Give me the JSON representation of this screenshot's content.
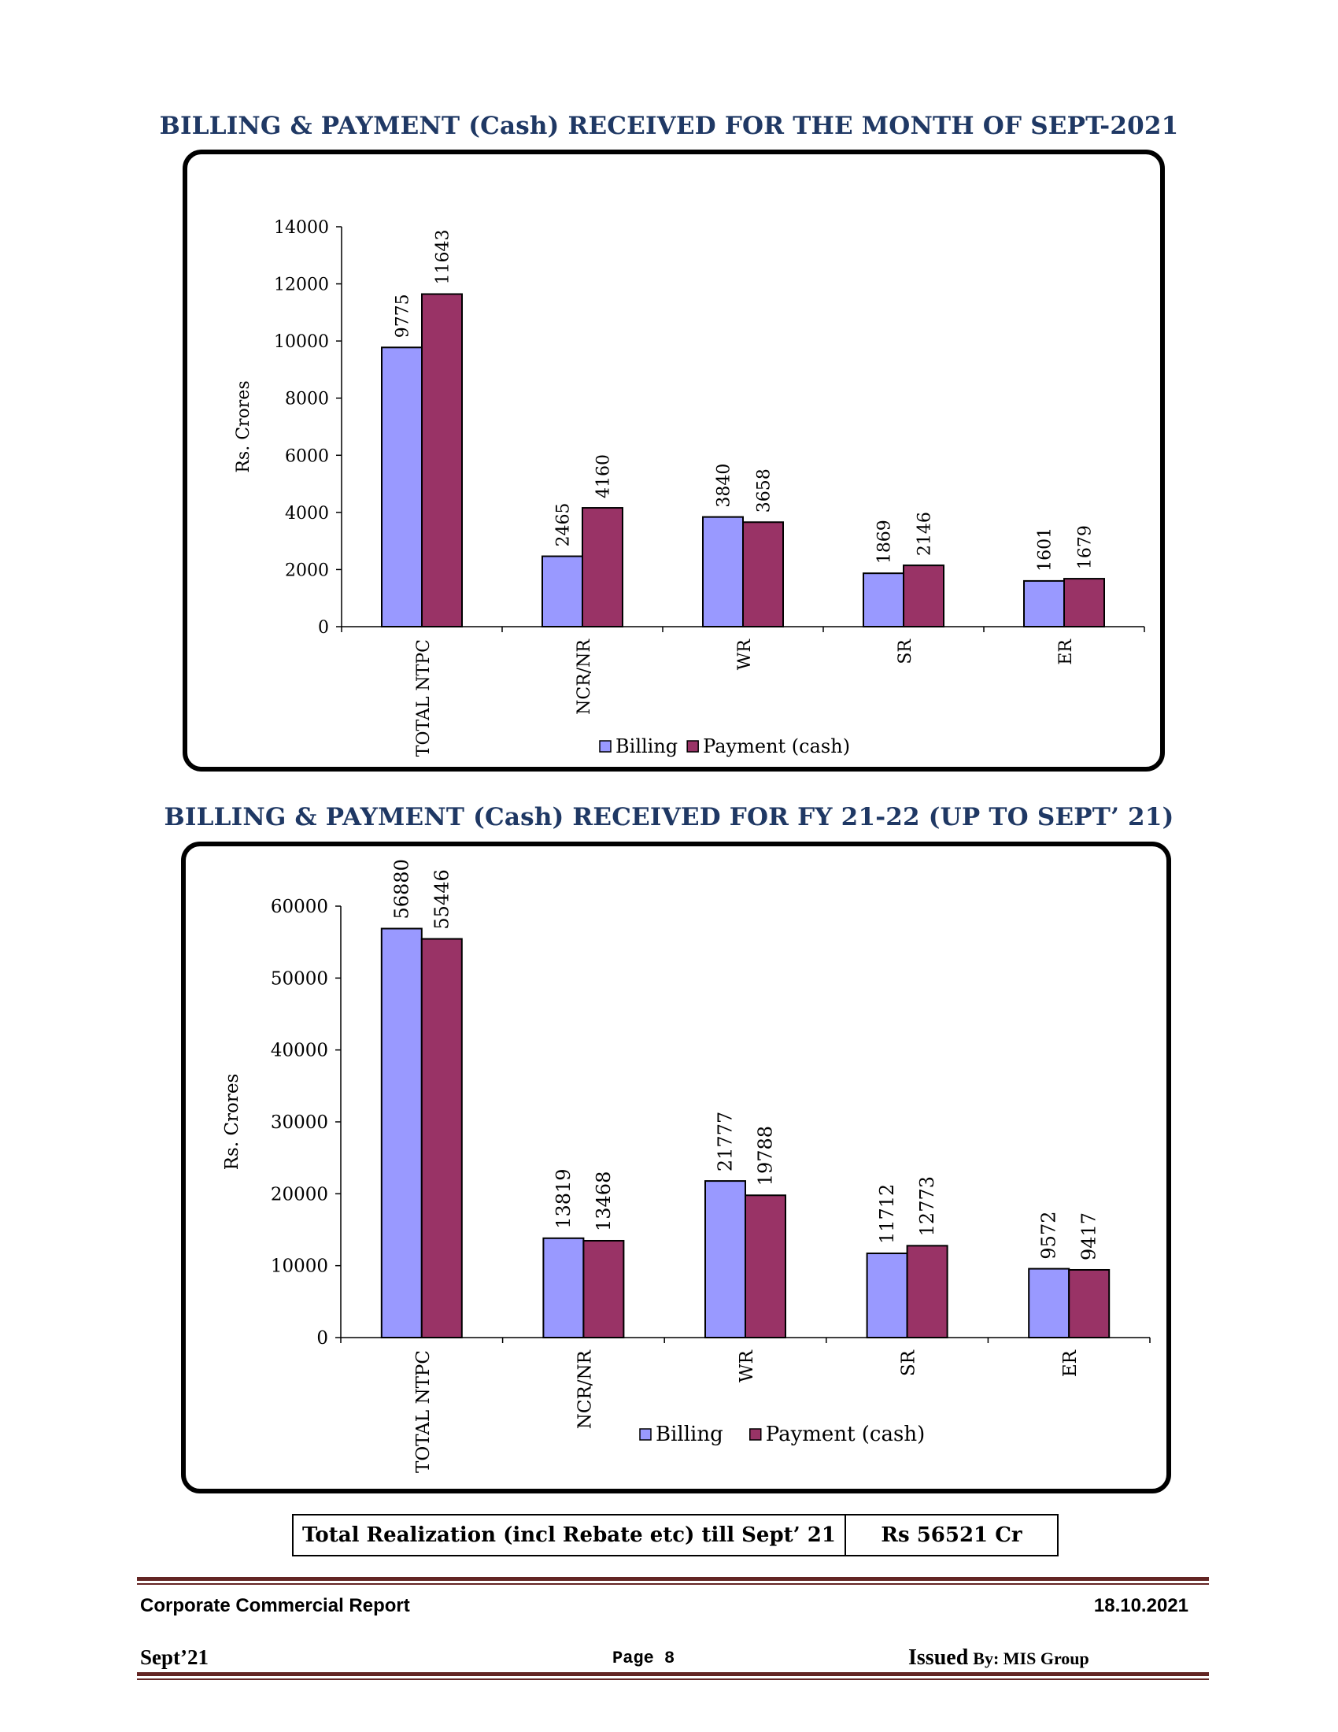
{
  "charts": {
    "monthly": {
      "title": "BILLING & PAYMENT (Cash) RECEIVED FOR THE MONTH OF SEPT-2021"
    },
    "fy": {
      "title": "BILLING & PAYMENT (Cash) RECEIVED FOR FY 21-22 (UP TO SEPT’ 21)"
    }
  },
  "chart_data": [
    {
      "type": "bar",
      "title": "BILLING & PAYMENT (Cash) RECEIVED FOR THE MONTH OF SEPT-2021",
      "xlabel": "",
      "ylabel": "Rs. Crores",
      "ylim": [
        0,
        14000
      ],
      "yticks": [
        0,
        2000,
        4000,
        6000,
        8000,
        10000,
        12000,
        14000
      ],
      "categories": [
        "TOTAL NTPC",
        "NCR/NR",
        "WR",
        "SR",
        "ER"
      ],
      "series": [
        {
          "name": "Billing",
          "color": "#9999ff",
          "values": [
            9775,
            2465,
            3840,
            1869,
            1601
          ]
        },
        {
          "name": "Payment (cash)",
          "color": "#993366",
          "values": [
            11643,
            4160,
            3658,
            2146,
            1679
          ]
        }
      ],
      "legend": "bottom",
      "grid": false
    },
    {
      "type": "bar",
      "title": "BILLING & PAYMENT (Cash) RECEIVED FOR FY 21-22 (UP TO SEPT’ 21)",
      "xlabel": "",
      "ylabel": "Rs. Crores",
      "ylim": [
        0,
        60000
      ],
      "yticks": [
        0,
        10000,
        20000,
        30000,
        40000,
        50000,
        60000
      ],
      "categories": [
        "TOTAL NTPC",
        "NCR/NR",
        "WR",
        "SR",
        "ER"
      ],
      "series": [
        {
          "name": "Billing",
          "color": "#9999ff",
          "values": [
            56880,
            13819,
            21777,
            11712,
            9572
          ]
        },
        {
          "name": "Payment (cash)",
          "color": "#993366",
          "values": [
            55446,
            13468,
            19788,
            12773,
            9417
          ]
        }
      ],
      "legend": "bottom",
      "grid": false
    }
  ],
  "summary": {
    "label": "Total Realization (incl Rebate etc) till Sept’ 21",
    "value": "Rs 56521 Cr"
  },
  "footer": {
    "report_name": "Corporate Commercial Report",
    "date": "18.10.2021",
    "period": "Sept’21",
    "page": "Page 8",
    "issued_prefix": "Issued",
    "issued_by": "By:  MIS Group",
    "rule_color": "#632523"
  }
}
